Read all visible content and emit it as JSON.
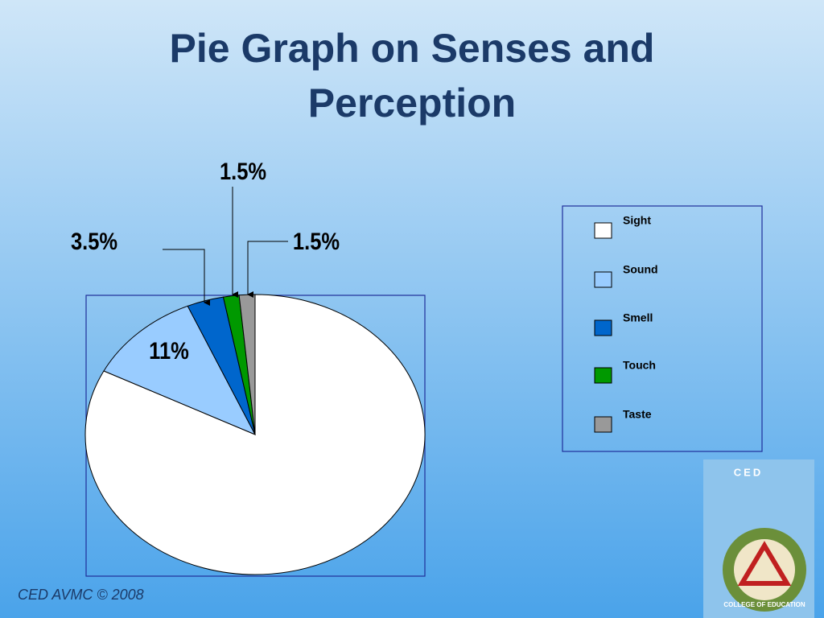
{
  "chart_data": {
    "type": "pie",
    "title": "Pie Graph on Senses and Perception",
    "categories": [
      "Sight",
      "Sound",
      "Smell",
      "Touch",
      "Taste"
    ],
    "values": [
      82.5,
      11,
      3.5,
      1.5,
      1.5
    ],
    "value_labels": [
      null,
      "11%",
      "3.5%",
      "1.5%",
      "1.5%"
    ],
    "colors": [
      "#ffffff",
      "#99ccff",
      "#0066cc",
      "#009900",
      "#999999"
    ],
    "legend": "right"
  },
  "footer": {
    "credit": "CED AVMC © 2008"
  },
  "logo": {
    "top": "CED",
    "seal": "COLLEGE OF EDUCATION"
  }
}
